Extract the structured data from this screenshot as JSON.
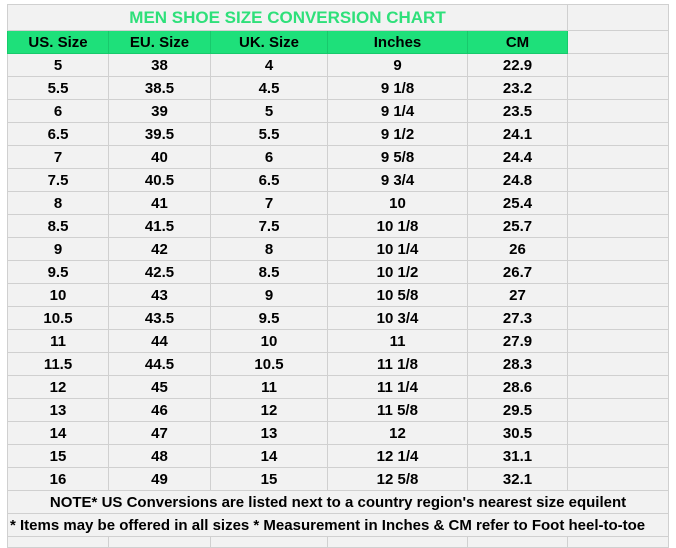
{
  "title": "MEN SHOE SIZE CONVERSION CHART",
  "colors": {
    "header_bg": "#1ee07a",
    "title_text": "#2ee07a",
    "cell_bg": "#f2f2f2",
    "grid": "#d0d0d0"
  },
  "headers": [
    "US. Size",
    "EU. Size",
    "UK. Size",
    "Inches",
    "CM"
  ],
  "rows": [
    [
      "5",
      "38",
      "4",
      "9",
      "22.9"
    ],
    [
      "5.5",
      "38.5",
      "4.5",
      "9 1/8",
      "23.2"
    ],
    [
      "6",
      "39",
      "5",
      "9 1/4",
      "23.5"
    ],
    [
      "6.5",
      "39.5",
      "5.5",
      "9 1/2",
      "24.1"
    ],
    [
      "7",
      "40",
      "6",
      "9 5/8",
      "24.4"
    ],
    [
      "7.5",
      "40.5",
      "6.5",
      "9 3/4",
      "24.8"
    ],
    [
      "8",
      "41",
      "7",
      "10",
      "25.4"
    ],
    [
      "8.5",
      "41.5",
      "7.5",
      "10 1/8",
      "25.7"
    ],
    [
      "9",
      "42",
      "8",
      "10 1/4",
      "26"
    ],
    [
      "9.5",
      "42.5",
      "8.5",
      "10 1/2",
      "26.7"
    ],
    [
      "10",
      "43",
      "9",
      "10 5/8",
      "27"
    ],
    [
      "10.5",
      "43.5",
      "9.5",
      "10 3/4",
      "27.3"
    ],
    [
      "11",
      "44",
      "10",
      "11",
      "27.9"
    ],
    [
      "11.5",
      "44.5",
      "10.5",
      "11 1/8",
      "28.3"
    ],
    [
      "12",
      "45",
      "11",
      "11 1/4",
      "28.6"
    ],
    [
      "13",
      "46",
      "12",
      "11 5/8",
      "29.5"
    ],
    [
      "14",
      "47",
      "13",
      "12",
      "30.5"
    ],
    [
      "15",
      "48",
      "14",
      "12 1/4",
      "31.1"
    ],
    [
      "16",
      "49",
      "15",
      "12 5/8",
      "32.1"
    ]
  ],
  "notes": [
    "NOTE* US Conversions are listed next to a country region's nearest size equilent",
    "* Items may be offered in all sizes * Measurement in Inches & CM refer to Foot heel-to-toe"
  ]
}
